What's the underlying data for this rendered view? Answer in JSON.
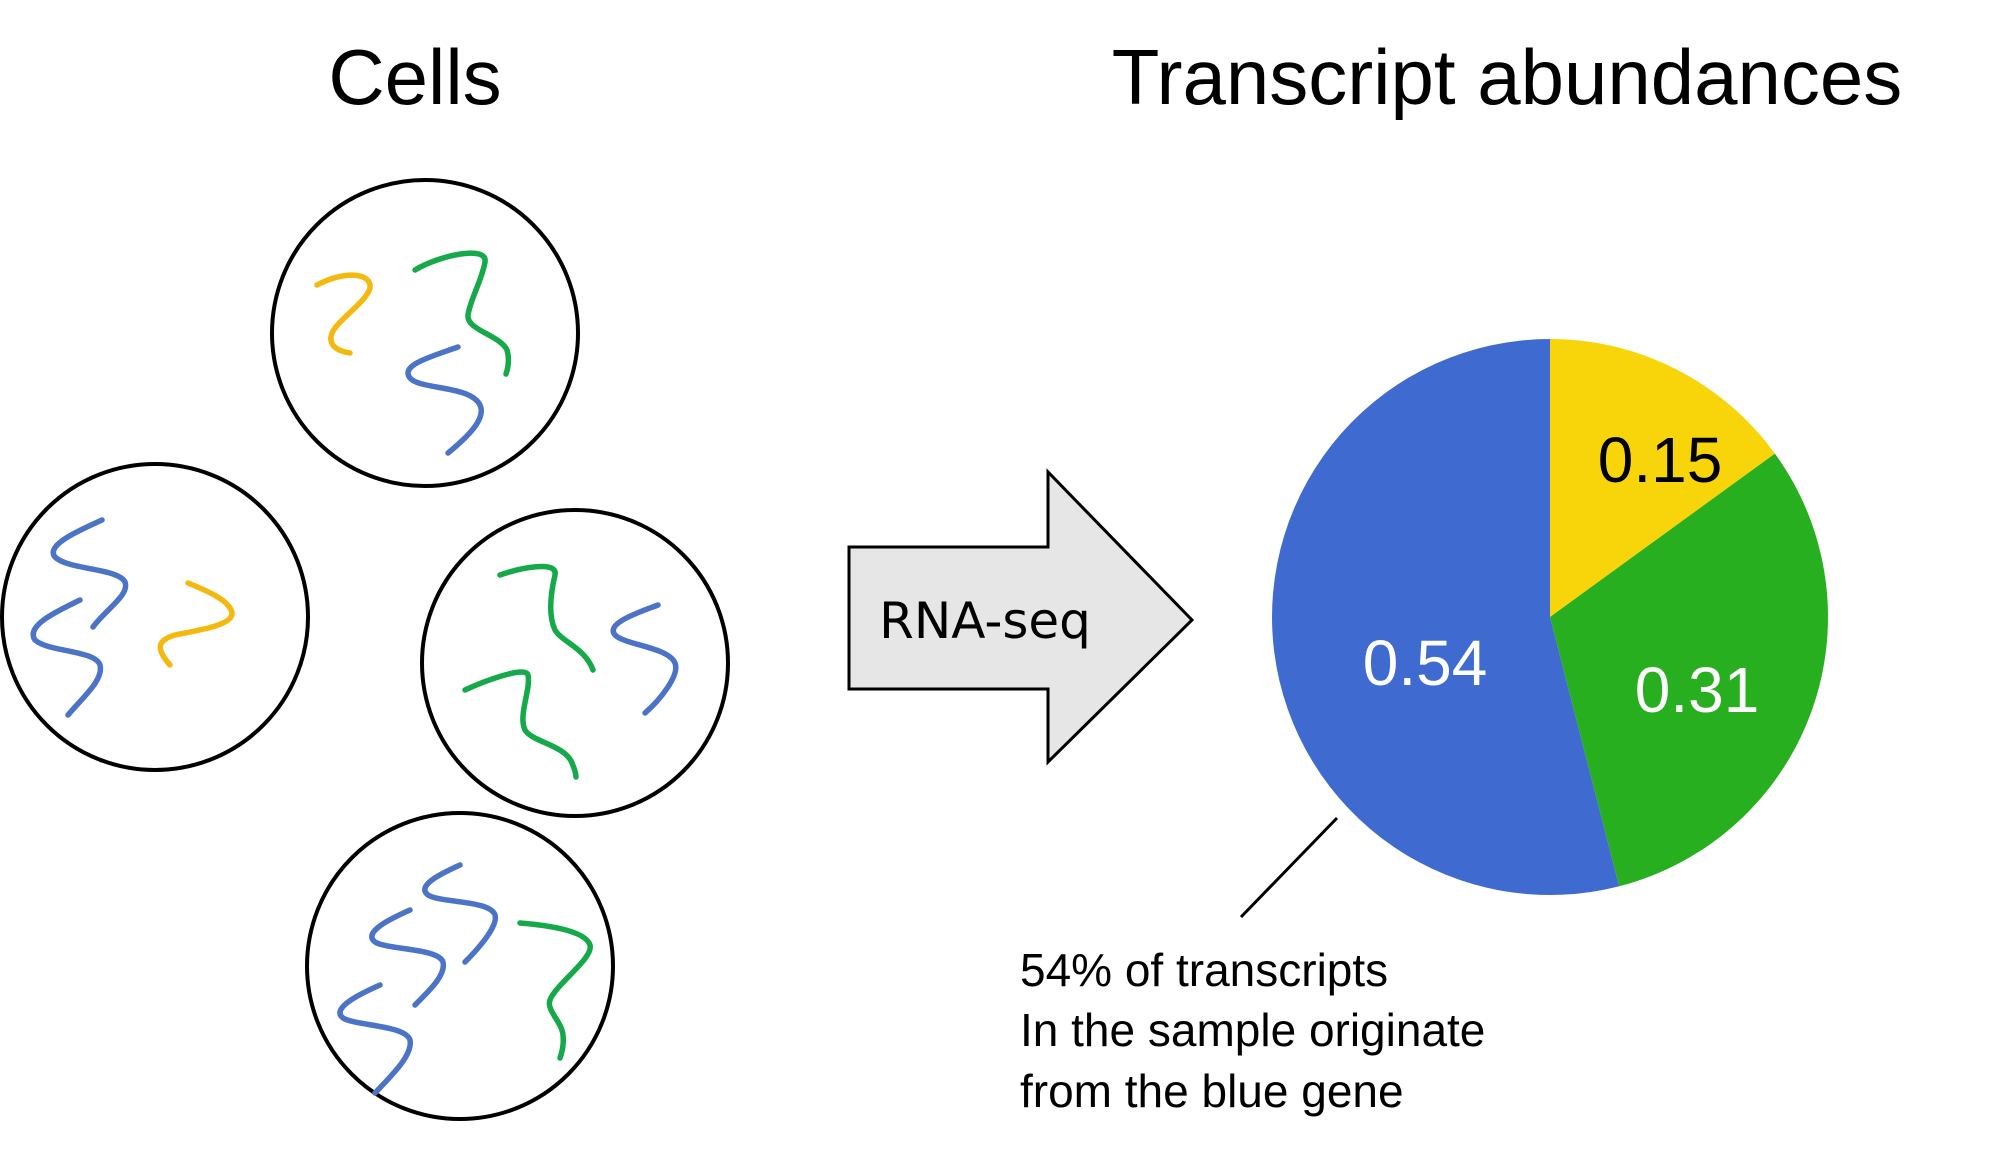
{
  "titles": {
    "cells": "Cells",
    "abundances": "Transcript abundances"
  },
  "arrow": {
    "label": "RNA-seq"
  },
  "colors": {
    "blue": "#3f6bd1",
    "green": "#27af1f",
    "yellow": "#f8d40a",
    "rna_blue": "#4b74c6",
    "rna_green": "#15a94a",
    "rna_yellow": "#f4b90f",
    "arrow_fill": "#e6e6e6"
  },
  "chart_data": {
    "type": "pie",
    "slices": [
      {
        "label": "0.15",
        "value": 0.15,
        "color": "#f8d40a",
        "text_color": "#000000"
      },
      {
        "label": "0.31",
        "value": 0.31,
        "color": "#27af1f",
        "text_color": "#ffffff"
      },
      {
        "label": "0.54",
        "value": 0.54,
        "color": "#3f6bd1",
        "text_color": "#ffffff"
      }
    ]
  },
  "annotation": {
    "lines": [
      "54% of transcripts",
      "In the sample originate",
      "from the blue gene"
    ]
  }
}
